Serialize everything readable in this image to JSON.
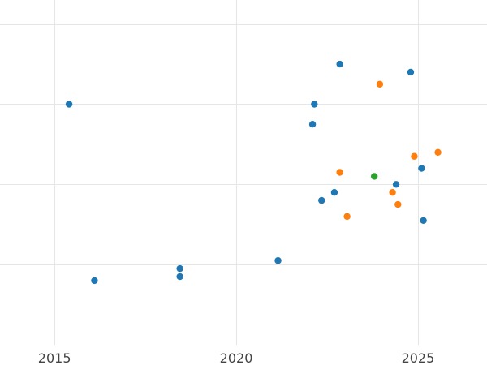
{
  "chart_data": {
    "type": "scatter",
    "title": "",
    "xlabel": "",
    "ylabel": "",
    "xlim": [
      2013.5,
      2026.9
    ],
    "ylim": [
      0,
      4.3
    ],
    "x_ticks": [
      2015,
      2020,
      2025
    ],
    "y_gridlines": [
      1,
      2,
      3,
      4
    ],
    "grid": true,
    "legend": "none",
    "series": [
      {
        "color": "#1f77b4",
        "points": [
          {
            "x": 2015.4,
            "y": 3.0
          },
          {
            "x": 2016.1,
            "y": 0.8
          },
          {
            "x": 2018.45,
            "y": 0.95
          },
          {
            "x": 2018.45,
            "y": 0.85
          },
          {
            "x": 2021.15,
            "y": 1.05
          },
          {
            "x": 2022.1,
            "y": 2.75
          },
          {
            "x": 2022.15,
            "y": 3.0
          },
          {
            "x": 2022.35,
            "y": 1.8
          },
          {
            "x": 2022.7,
            "y": 1.9
          },
          {
            "x": 2022.85,
            "y": 3.5
          },
          {
            "x": 2024.4,
            "y": 2.0
          },
          {
            "x": 2024.8,
            "y": 3.4
          },
          {
            "x": 2025.1,
            "y": 2.2
          },
          {
            "x": 2025.15,
            "y": 1.55
          }
        ]
      },
      {
        "color": "#ff7f0e",
        "points": [
          {
            "x": 2022.85,
            "y": 2.15
          },
          {
            "x": 2023.05,
            "y": 1.6
          },
          {
            "x": 2023.95,
            "y": 3.25
          },
          {
            "x": 2024.3,
            "y": 1.9
          },
          {
            "x": 2024.45,
            "y": 1.75
          },
          {
            "x": 2024.9,
            "y": 2.35
          },
          {
            "x": 2025.55,
            "y": 2.4
          }
        ]
      },
      {
        "color": "#2ca02c",
        "points": [
          {
            "x": 2023.8,
            "y": 2.1
          }
        ]
      }
    ]
  }
}
